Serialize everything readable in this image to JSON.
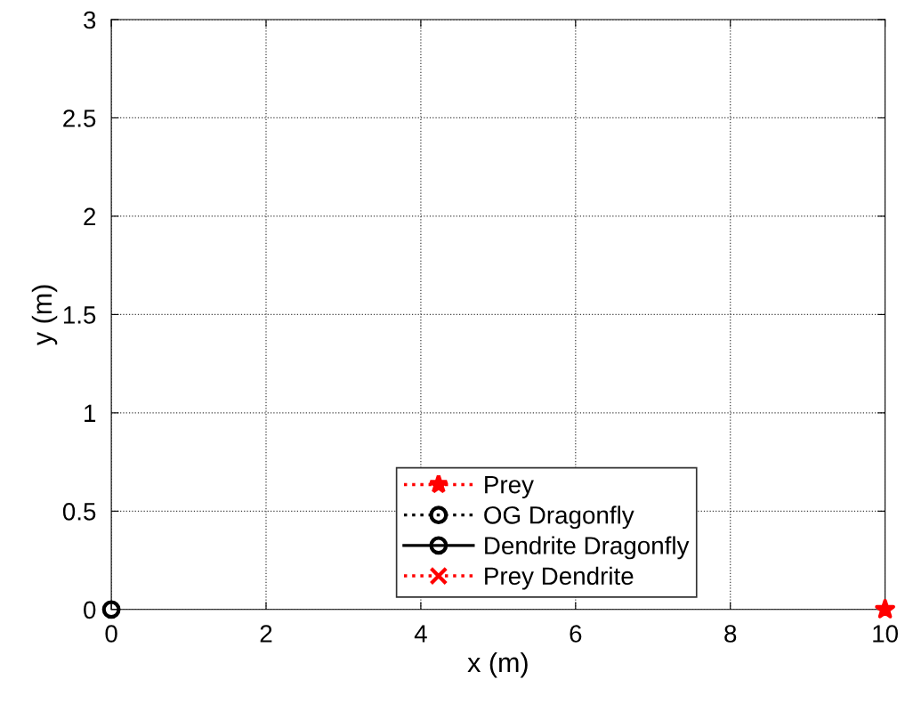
{
  "chart_data": {
    "type": "line",
    "xlabel": "x (m)",
    "ylabel": "y (m)",
    "xlim": [
      0,
      10
    ],
    "xticks": [
      0,
      2,
      4,
      6,
      8,
      10
    ],
    "ylim": [
      0,
      3
    ],
    "yticks": [
      0,
      0.5,
      1,
      1.5,
      2,
      2.5,
      3
    ],
    "grid": true,
    "legend": "bottom",
    "series": [
      {
        "name": "Prey",
        "color": "#ff0000",
        "x": [
          10
        ],
        "values": [
          0
        ],
        "marker": "star",
        "line_style": "dotted"
      },
      {
        "name": "OG Dragonfly",
        "color": "#000000",
        "x": [
          null
        ],
        "values": [
          null
        ],
        "marker": "circle",
        "line_style": "dotted"
      },
      {
        "name": "Dendrite Dragonfly",
        "color": "#000000",
        "x": [
          0
        ],
        "values": [
          0
        ],
        "marker": "circle",
        "line_style": "solid"
      },
      {
        "name": "Prey Dendrite",
        "color": "#ff0000",
        "x": [
          null
        ],
        "values": [
          null
        ],
        "marker": "cross",
        "line_style": "dotted"
      }
    ]
  }
}
